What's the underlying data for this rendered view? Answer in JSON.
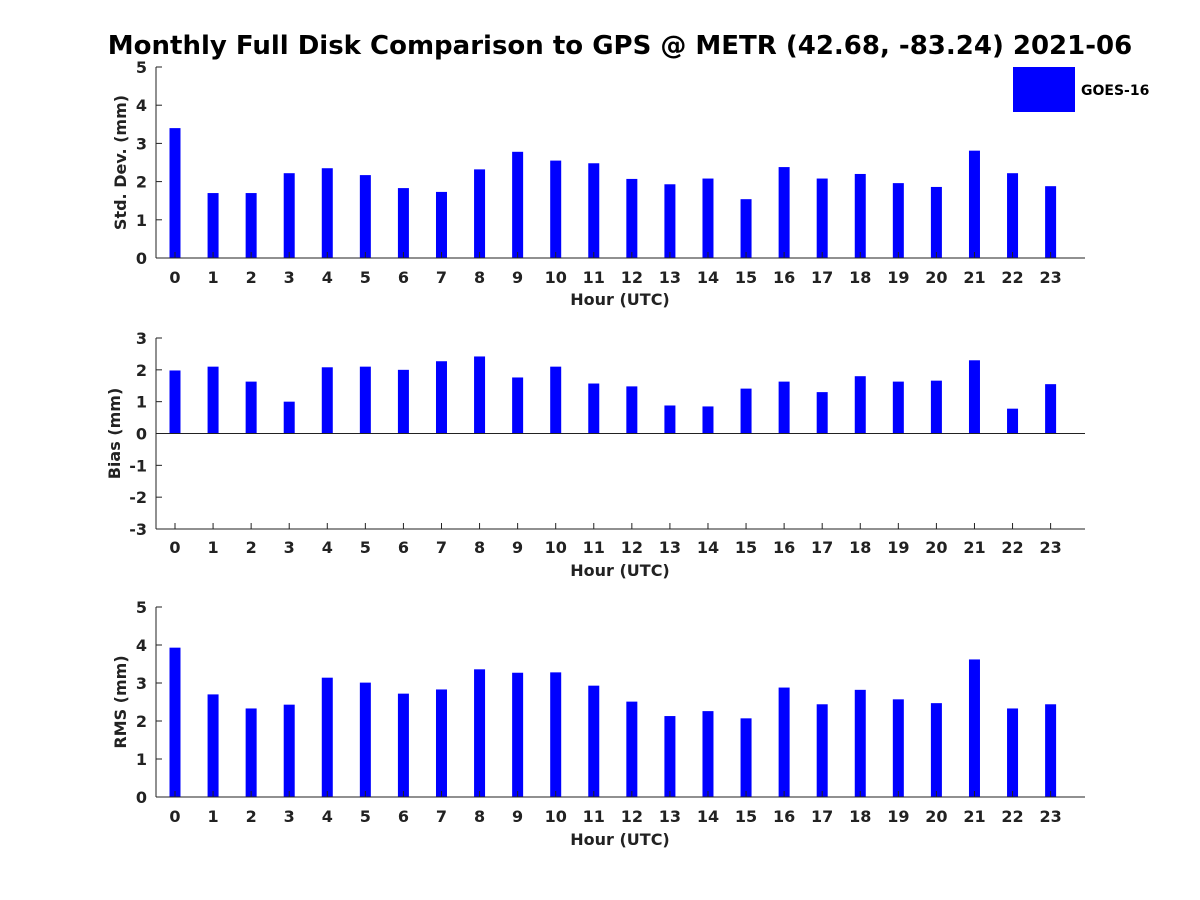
{
  "chart_data": {
    "title": "Monthly Full Disk Comparison to GPS @ METR (42.68, -83.24) 2021-06",
    "legend": {
      "label": "GOES-16",
      "placement": "top-right",
      "color": "#0000ff"
    },
    "bar_color": "#0000ff",
    "panels": [
      {
        "type": "bar",
        "xlabel": "Hour (UTC)",
        "ylabel": "Std. Dev. (mm)",
        "ylim": [
          0,
          5
        ],
        "yticks": [
          "0",
          "1",
          "2",
          "3",
          "4",
          "5"
        ],
        "categories": [
          "0",
          "1",
          "2",
          "3",
          "4",
          "5",
          "6",
          "7",
          "8",
          "9",
          "10",
          "11",
          "12",
          "13",
          "14",
          "15",
          "16",
          "17",
          "18",
          "19",
          "20",
          "21",
          "22",
          "23"
        ],
        "values": [
          3.4,
          1.7,
          1.7,
          2.22,
          2.35,
          2.17,
          1.83,
          1.73,
          2.32,
          2.78,
          2.55,
          2.48,
          2.07,
          1.93,
          2.08,
          1.54,
          2.38,
          2.08,
          2.2,
          1.96,
          1.86,
          2.81,
          2.22,
          1.88
        ]
      },
      {
        "type": "bar",
        "xlabel": "Hour (UTC)",
        "ylabel": "Bias (mm)",
        "ylim": [
          -3,
          3
        ],
        "yticks": [
          "-3",
          "-2",
          "-1",
          "0",
          "1",
          "2",
          "3"
        ],
        "categories": [
          "0",
          "1",
          "2",
          "3",
          "4",
          "5",
          "6",
          "7",
          "8",
          "9",
          "10",
          "11",
          "12",
          "13",
          "14",
          "15",
          "16",
          "17",
          "18",
          "19",
          "20",
          "21",
          "22",
          "23"
        ],
        "values": [
          1.98,
          2.1,
          1.63,
          1.0,
          2.08,
          2.1,
          2.0,
          2.27,
          2.42,
          1.76,
          2.1,
          1.57,
          1.48,
          0.88,
          0.85,
          1.41,
          1.63,
          1.3,
          1.8,
          1.63,
          1.66,
          2.3,
          0.78,
          1.55
        ]
      },
      {
        "type": "bar",
        "xlabel": "Hour (UTC)",
        "ylabel": "RMS (mm)",
        "ylim": [
          0,
          5
        ],
        "yticks": [
          "0",
          "1",
          "2",
          "3",
          "4",
          "5"
        ],
        "categories": [
          "0",
          "1",
          "2",
          "3",
          "4",
          "5",
          "6",
          "7",
          "8",
          "9",
          "10",
          "11",
          "12",
          "13",
          "14",
          "15",
          "16",
          "17",
          "18",
          "19",
          "20",
          "21",
          "22",
          "23"
        ],
        "values": [
          3.93,
          2.7,
          2.33,
          2.43,
          3.14,
          3.01,
          2.72,
          2.83,
          3.36,
          3.27,
          3.28,
          2.93,
          2.51,
          2.13,
          2.26,
          2.07,
          2.88,
          2.44,
          2.82,
          2.57,
          2.47,
          3.62,
          2.33,
          2.44
        ]
      }
    ]
  }
}
